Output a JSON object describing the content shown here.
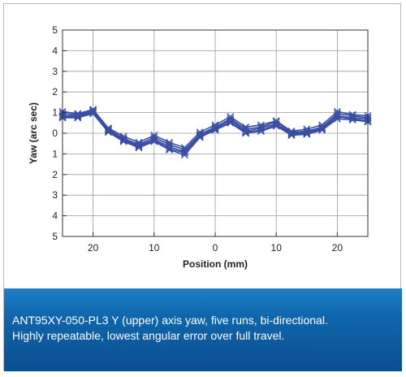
{
  "chart_data": {
    "type": "line",
    "title": "",
    "xlabel": "Position (mm)",
    "ylabel": "Yaw (arc sec)",
    "x_reversed_labels": true,
    "xlim": [
      -25,
      25
    ],
    "ylim": [
      -5,
      5
    ],
    "x_ticks": [
      {
        "value": -20,
        "label": "20"
      },
      {
        "value": -10,
        "label": "10"
      },
      {
        "value": 0,
        "label": "0"
      },
      {
        "value": 10,
        "label": "10"
      },
      {
        "value": 20,
        "label": "20"
      }
    ],
    "y_ticks": [
      {
        "value": 5,
        "label": "5"
      },
      {
        "value": 4,
        "label": "4"
      },
      {
        "value": 3,
        "label": "3"
      },
      {
        "value": 2,
        "label": "2"
      },
      {
        "value": 1,
        "label": "1"
      },
      {
        "value": 0,
        "label": "0"
      },
      {
        "value": -1,
        "label": "1"
      },
      {
        "value": -2,
        "label": "2"
      },
      {
        "value": -3,
        "label": "3"
      },
      {
        "value": -4,
        "label": "4"
      },
      {
        "value": -5,
        "label": "5"
      }
    ],
    "grid": true,
    "line_color": "#3a4fa3",
    "marker": "x",
    "x": [
      -25,
      -22.5,
      -20,
      -17.5,
      -15,
      -12.5,
      -10,
      -7.5,
      -5,
      -2.5,
      0,
      2.5,
      5,
      7.5,
      10,
      12.5,
      15,
      17.5,
      20,
      22.5,
      25
    ],
    "series": [
      {
        "values": [
          1.05,
          0.95,
          1.15,
          0.25,
          -0.15,
          -0.45,
          -0.1,
          -0.45,
          -0.7,
          0.05,
          0.4,
          0.8,
          0.3,
          0.4,
          0.6,
          0.1,
          0.2,
          0.4,
          1.05,
          0.9,
          0.85
        ]
      },
      {
        "values": [
          0.95,
          0.9,
          1.1,
          0.2,
          -0.25,
          -0.55,
          -0.2,
          -0.55,
          -0.8,
          -0.05,
          0.3,
          0.7,
          0.2,
          0.3,
          0.55,
          0.05,
          0.1,
          0.3,
          0.95,
          0.85,
          0.75
        ]
      },
      {
        "values": [
          0.85,
          0.85,
          1.05,
          0.15,
          -0.3,
          -0.6,
          -0.3,
          -0.65,
          -0.9,
          -0.1,
          0.25,
          0.65,
          0.1,
          0.25,
          0.45,
          0.0,
          0.05,
          0.25,
          0.85,
          0.75,
          0.7
        ]
      },
      {
        "values": [
          0.8,
          0.8,
          1.0,
          0.1,
          -0.35,
          -0.65,
          -0.35,
          -0.75,
          -0.95,
          -0.15,
          0.2,
          0.55,
          0.05,
          0.15,
          0.4,
          -0.05,
          0.0,
          0.2,
          0.8,
          0.7,
          0.6
        ]
      },
      {
        "values": [
          0.75,
          0.75,
          0.95,
          0.05,
          -0.4,
          -0.7,
          -0.4,
          -0.8,
          -1.05,
          -0.2,
          0.15,
          0.5,
          0.0,
          0.1,
          0.35,
          -0.1,
          -0.05,
          0.15,
          0.7,
          0.65,
          0.55
        ]
      }
    ]
  },
  "caption": {
    "line1": "ANT95XY-050-PL3 Y (upper) axis yaw, five runs, bi-directional.",
    "line2": "Highly repeatable, lowest angular error over full travel."
  }
}
